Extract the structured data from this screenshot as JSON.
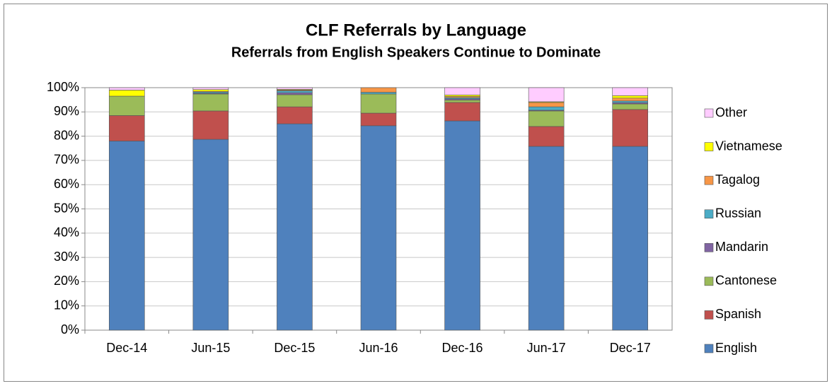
{
  "chart_data": {
    "type": "stacked_bar",
    "title": "CLF Referrals by Language",
    "subtitle": "Referrals from English Speakers Continue to Dominate",
    "categories": [
      "Dec-14",
      "Jun-15",
      "Dec-15",
      "Jun-16",
      "Dec-16",
      "Jun-17",
      "Dec-17"
    ],
    "series": [
      {
        "name": "English",
        "color": "#4f81bd",
        "values": [
          78,
          78.7,
          85.1,
          84.3,
          86.3,
          75.8,
          75.8
        ]
      },
      {
        "name": "Spanish",
        "color": "#c0504d",
        "values": [
          10.5,
          11.7,
          7,
          5.2,
          7.6,
          8.2,
          15.2
        ]
      },
      {
        "name": "Cantonese",
        "color": "#9bbb59",
        "values": [
          8,
          7,
          5,
          7.9,
          1,
          6.4,
          2.3
        ]
      },
      {
        "name": "Mandarin",
        "color": "#8064a2",
        "values": [
          0,
          0.3,
          0.8,
          0,
          0.5,
          0.3,
          0.5
        ]
      },
      {
        "name": "Russian",
        "color": "#4bacc6",
        "values": [
          0,
          0.5,
          0.8,
          0.7,
          0.5,
          1.4,
          0.7
        ]
      },
      {
        "name": "Tagalog",
        "color": "#f79646",
        "values": [
          0,
          0.3,
          0.3,
          1.9,
          0.5,
          1.8,
          1.2
        ]
      },
      {
        "name": "Vietnamese",
        "color": "#ffff00",
        "values": [
          2.5,
          0.7,
          0.3,
          0,
          0.6,
          0.3,
          1
        ]
      },
      {
        "name": "Other",
        "color": "#ffccff",
        "values": [
          1,
          0.8,
          0.7,
          0,
          3,
          5.8,
          3.3
        ]
      }
    ],
    "ylim": [
      0,
      100
    ],
    "yticks": [
      {
        "value": 0,
        "label": "0%"
      },
      {
        "value": 10,
        "label": "10%"
      },
      {
        "value": 20,
        "label": "20%"
      },
      {
        "value": 30,
        "label": "30%"
      },
      {
        "value": 40,
        "label": "40%"
      },
      {
        "value": 50,
        "label": "50%"
      },
      {
        "value": 60,
        "label": "60%"
      },
      {
        "value": 70,
        "label": "70%"
      },
      {
        "value": 80,
        "label": "80%"
      },
      {
        "value": 90,
        "label": "90%"
      },
      {
        "value": 100,
        "label": "100%"
      }
    ],
    "grid": true,
    "legend": "right"
  }
}
